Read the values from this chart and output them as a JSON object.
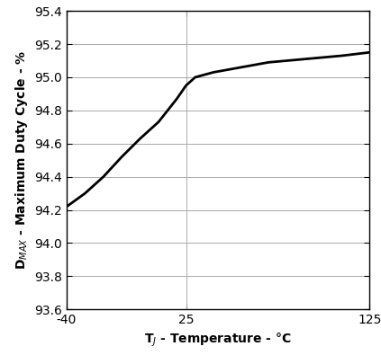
{
  "x_data": [
    -40,
    -30,
    -20,
    -10,
    0,
    10,
    20,
    25,
    30,
    40,
    50,
    60,
    70,
    80,
    90,
    100,
    110,
    125
  ],
  "y_data": [
    94.22,
    94.3,
    94.4,
    94.52,
    94.63,
    94.73,
    94.87,
    94.95,
    95.0,
    95.03,
    95.05,
    95.07,
    95.09,
    95.1,
    95.11,
    95.12,
    95.13,
    95.15
  ],
  "xlim": [
    -40,
    125
  ],
  "ylim": [
    93.6,
    95.4
  ],
  "xticks": [
    -40,
    25,
    125
  ],
  "yticks": [
    93.6,
    93.8,
    94.0,
    94.2,
    94.4,
    94.6,
    94.8,
    95.0,
    95.2,
    95.4
  ],
  "line_color": "#000000",
  "line_width": 2.0,
  "grid_color": "#aaaaaa",
  "background_color": "#ffffff",
  "xlabel_display": "T$_J$ - Temperature - °C",
  "ylabel_display": "D$_{MAX}$ - Maximum Duty Cycle - %",
  "vline_x": 25,
  "figsize": [
    4.23,
    4.05
  ],
  "dpi": 100,
  "spine_color": "#000000",
  "tick_fontsize": 10,
  "label_fontsize": 10,
  "label_fontweight": "bold"
}
